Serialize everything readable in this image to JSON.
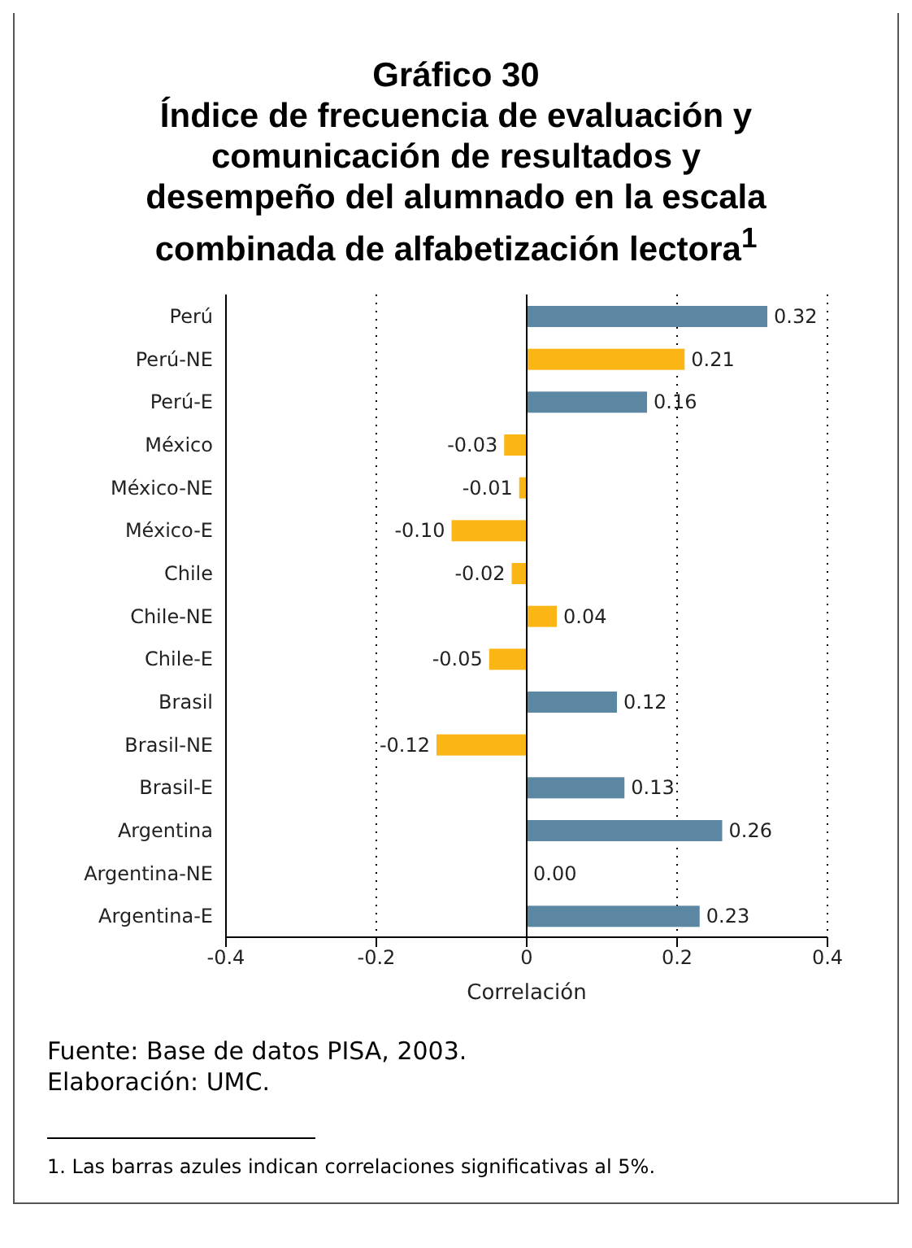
{
  "chart_data": {
    "type": "bar",
    "orientation": "horizontal",
    "title": "Gráfico 30\nÍndice de frecuencia de evaluación y comunicación de resultados y desempeño del alumnado en la escala combinada de alfabetización lectora$^{1}$",
    "xlabel": "Correlación",
    "categories": [
      "Perú",
      "Perú-NE",
      "Perú-E",
      "México",
      "México-NE",
      "México-E",
      "Chile",
      "Chile-NE",
      "Chile-E",
      "Brasil",
      "Brasil-NE",
      "Brasil-E",
      "Argentina",
      "Argentina-NE",
      "Argentina-E"
    ],
    "values": [
      0.32,
      0.21,
      0.16,
      -0.03,
      -0.01,
      -0.1,
      -0.02,
      0.04,
      -0.05,
      0.12,
      -0.12,
      0.13,
      0.26,
      0.0,
      0.23
    ],
    "value_labels": [
      "0.32",
      "0.21",
      "0.16",
      "-0.03",
      "-0.01",
      "-0.10",
      "-0.02",
      "0.04",
      "-0.05",
      "0.12",
      "-0.12",
      "0.13",
      "0.26",
      "0.00",
      "0.23"
    ],
    "colors": [
      "#5b87a3",
      "#fbb616",
      "#5b87a3",
      "#fbb616",
      "#fbb616",
      "#fbb616",
      "#fbb616",
      "#fbb616",
      "#fbb616",
      "#5b87a3",
      "#fbb616",
      "#5b87a3",
      "#5b87a3",
      "#fbb616",
      "#5b87a3"
    ],
    "xlim": [
      -0.4,
      0.4
    ],
    "xticks": [
      -0.4,
      -0.2,
      0,
      0.2,
      0.4
    ],
    "grid": "x",
    "ref_lines": [
      {
        "axis": "x",
        "value": 0,
        "color": "#000000",
        "line_style": "solid"
      }
    ],
    "annotations": [
      "Fuente: Base de datos PISA, 2003.",
      "Elaboración: UMC.",
      "1.  Las barras azules indican correlaciones significativas al 5%."
    ]
  }
}
